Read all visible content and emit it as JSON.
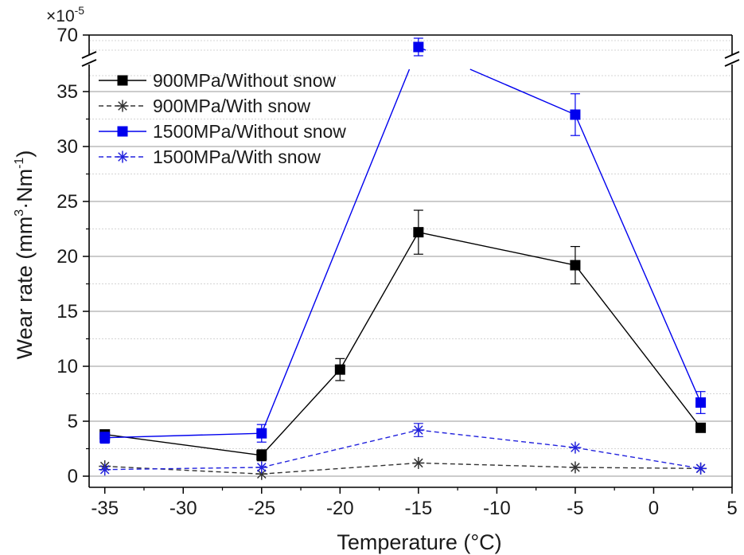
{
  "chart_data": {
    "type": "line",
    "title": "",
    "xlabel": "Temperature (°C)",
    "ylabel_main": "Wear rate (mm",
    "ylabel_sup1": "3",
    "ylabel_mid": "·Nm",
    "ylabel_sup2": "-1",
    "ylabel_end": ")",
    "y_multiplier_base": "×10",
    "y_multiplier_exp": "-5",
    "xlim": [
      -36,
      5
    ],
    "ylim_lower": [
      -1,
      37
    ],
    "ylim_upper_label": "70",
    "axis_break": true,
    "x_ticks": [
      -35,
      -30,
      -25,
      -20,
      -15,
      -10,
      -5,
      0,
      5
    ],
    "x_tick_labels": [
      "-35",
      "-30",
      "-25",
      "-20",
      "-15",
      "-10",
      "-5",
      "0",
      "5"
    ],
    "y_ticks": [
      0,
      5,
      10,
      15,
      20,
      25,
      30,
      35
    ],
    "y_tick_labels": [
      "0",
      "5",
      "10",
      "15",
      "20",
      "25",
      "30",
      "35"
    ],
    "grid": true,
    "legend_position": "top-left",
    "series": [
      {
        "name": "900MPa/Without snow",
        "color": "#000000",
        "line_style": "solid",
        "marker": "square",
        "x": [
          -35,
          -25,
          -20,
          -15,
          -5,
          3
        ],
        "y": [
          3.8,
          1.9,
          9.7,
          22.2,
          19.2,
          4.4
        ],
        "error": [
          0,
          0.5,
          1.0,
          2.0,
          1.7,
          0
        ]
      },
      {
        "name": "900MPa/With snow",
        "color": "#333333",
        "line_style": "dashed",
        "marker": "asterisk",
        "x": [
          -35,
          -25,
          -15,
          -5,
          3
        ],
        "y": [
          0.9,
          0.2,
          1.2,
          0.8,
          0.7
        ],
        "error": [
          0,
          0,
          0,
          0,
          0
        ]
      },
      {
        "name": "1500MPa/Without snow",
        "color": "#0000ee",
        "line_style": "solid",
        "marker": "square",
        "x": [
          -35,
          -25,
          -15,
          -5,
          3
        ],
        "y": [
          3.5,
          3.9,
          62,
          32.9,
          6.7
        ],
        "error": [
          0.5,
          0.8,
          3,
          1.9,
          1.0
        ],
        "upper_segment_index": 2
      },
      {
        "name": "1500MPa/With snow",
        "color": "#2222dd",
        "line_style": "dashed",
        "marker": "asterisk",
        "x": [
          -35,
          -25,
          -15,
          -5,
          3
        ],
        "y": [
          0.6,
          0.8,
          4.2,
          2.6,
          0.7
        ],
        "error": [
          0,
          0,
          0.6,
          0,
          0
        ]
      }
    ]
  }
}
